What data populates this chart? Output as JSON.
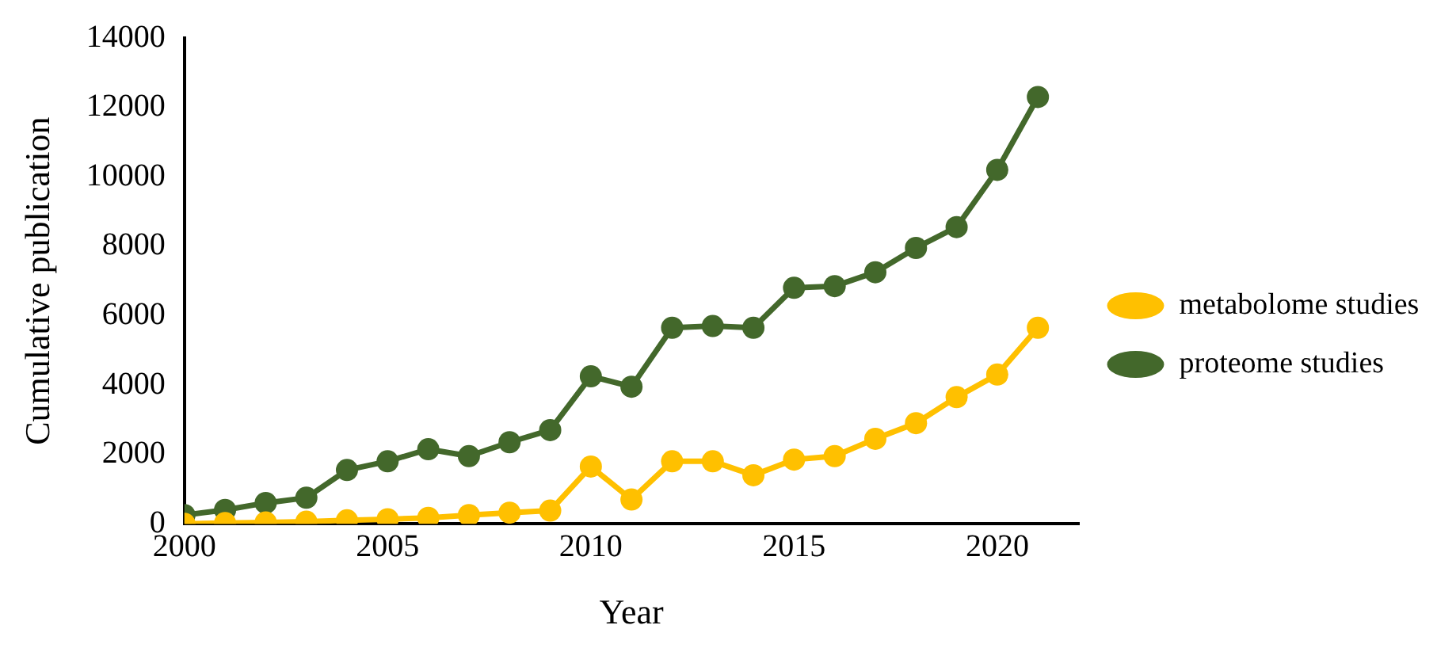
{
  "chart_data": {
    "type": "line",
    "xlabel": "Year",
    "ylabel": "Cumulative publication",
    "x": [
      2000,
      2001,
      2002,
      2003,
      2004,
      2005,
      2006,
      2007,
      2008,
      2009,
      2010,
      2011,
      2012,
      2013,
      2014,
      2015,
      2016,
      2017,
      2018,
      2019,
      2020,
      2021
    ],
    "series": [
      {
        "name": "metabolome studies",
        "color": "#ffc000",
        "values": [
          0,
          20,
          40,
          60,
          100,
          130,
          170,
          250,
          320,
          380,
          1650,
          700,
          1800,
          1800,
          1400,
          1850,
          1950,
          2450,
          2900,
          3650,
          4300,
          5650
        ]
      },
      {
        "name": "proteome studies",
        "color": "#43682b",
        "values": [
          250,
          400,
          600,
          750,
          1550,
          1800,
          2150,
          1950,
          2350,
          2700,
          4250,
          3950,
          5650,
          5700,
          5650,
          6800,
          6850,
          7250,
          7950,
          8550,
          10200,
          12300
        ]
      }
    ],
    "xlim": [
      2000,
      2022
    ],
    "xticks": [
      2000,
      2005,
      2010,
      2015,
      2020
    ],
    "ylim": [
      0,
      14000
    ],
    "yticks": [
      0,
      2000,
      4000,
      6000,
      8000,
      10000,
      12000,
      14000
    ],
    "grid": false,
    "legend": "right",
    "marker": "circle",
    "line_style": "solid"
  }
}
